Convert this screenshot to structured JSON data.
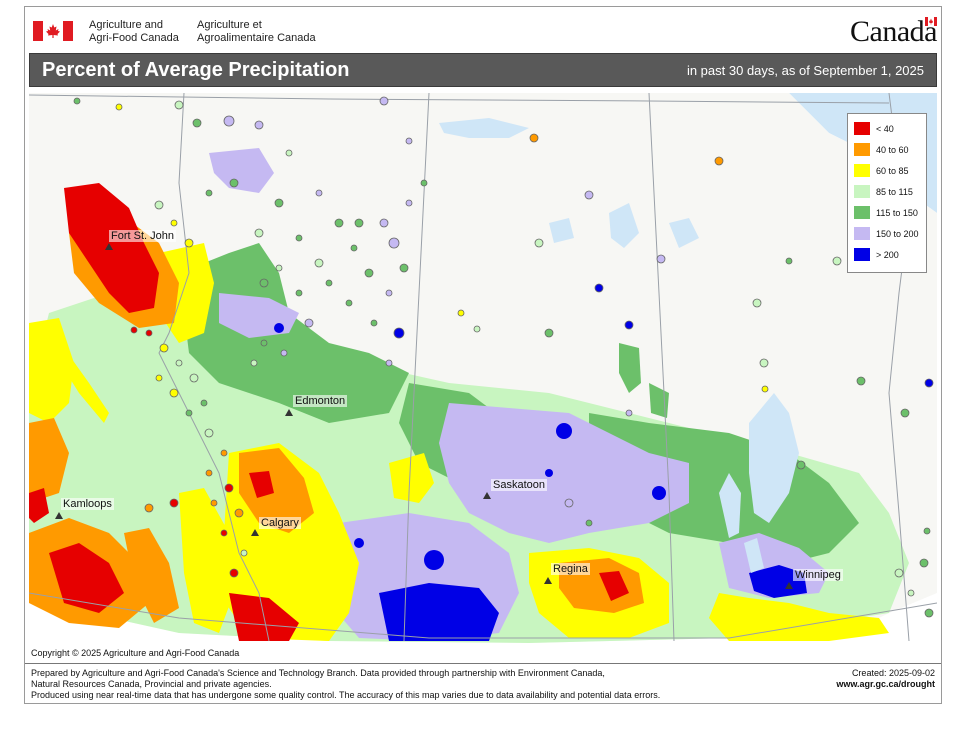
{
  "header": {
    "agency_en_line1": "Agriculture and",
    "agency_en_line2": "Agri-Food Canada",
    "agency_fr_line1": "Agriculture et",
    "agency_fr_line2": "Agroalimentaire Canada",
    "wordmark": "Canada",
    "flag_icon": "canada-flag-icon"
  },
  "title_bar": {
    "title": "Percent of Average Precipitation",
    "subtitle": "in past 30 days, as of September 1, 2025"
  },
  "legend": {
    "items": [
      {
        "label": "< 40",
        "color": "#e60000"
      },
      {
        "label": "40 to 60",
        "color": "#ff9a00"
      },
      {
        "label": "60 to 85",
        "color": "#ffff00"
      },
      {
        "label": "85 to 115",
        "color": "#c8f5c0"
      },
      {
        "label": "115 to 150",
        "color": "#6cc06a"
      },
      {
        "label": "150 to 200",
        "color": "#c5b9f2"
      },
      {
        "label": "> 200",
        "color": "#0000e6"
      }
    ]
  },
  "cities": [
    {
      "name": "Fort St. John"
    },
    {
      "name": "Edmonton"
    },
    {
      "name": "Kamloops"
    },
    {
      "name": "Calgary"
    },
    {
      "name": "Saskatoon"
    },
    {
      "name": "Regina"
    },
    {
      "name": "Winnipeg"
    }
  ],
  "colors": {
    "land": "#ffffff",
    "water": "#cfe6f7",
    "border": "#9aa0a8",
    "title_bar": "#595959"
  },
  "footer": {
    "copyright": "Copyright © 2025 Agriculture and Agri-Food Canada",
    "line1": "Prepared by Agriculture and Agri-Food Canada's Science and Technology Branch. Data provided through partnership with Environment Canada,",
    "line2": "Natural Resources Canada, Provincial and private agencies.",
    "line3": "Produced using near real-time data that has undergone some quality control. The accuracy of this map varies due to data availability and potential data errors.",
    "created": "Created: 2025-09-02",
    "url": "www.agr.gc.ca/drought"
  }
}
